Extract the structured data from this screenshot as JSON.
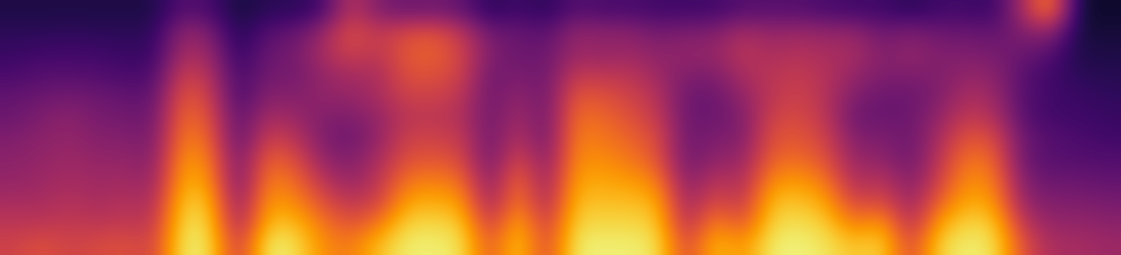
{
  "chart_data": {
    "type": "heatmap",
    "tick_labels": false,
    "color": "inferno",
    "color_range": [
      0,
      1
    ],
    "cells": [
      [
        0.55,
        0.5,
        0.45,
        0.4,
        0.38,
        0.35,
        0.3,
        0.28,
        0.22,
        0.18,
        0.15,
        0.12
      ],
      [
        0.6,
        0.5,
        0.45,
        0.42,
        0.4,
        0.38,
        0.35,
        0.3,
        0.25,
        0.2,
        0.15,
        0.12
      ],
      [
        0.55,
        0.52,
        0.48,
        0.45,
        0.42,
        0.4,
        0.38,
        0.32,
        0.25,
        0.2,
        0.16,
        0.12
      ],
      [
        0.58,
        0.5,
        0.45,
        0.42,
        0.4,
        0.36,
        0.33,
        0.3,
        0.24,
        0.2,
        0.15,
        0.12
      ],
      [
        0.6,
        0.52,
        0.48,
        0.44,
        0.4,
        0.36,
        0.32,
        0.28,
        0.22,
        0.18,
        0.15,
        0.12
      ],
      [
        0.55,
        0.5,
        0.45,
        0.4,
        0.36,
        0.33,
        0.3,
        0.27,
        0.22,
        0.18,
        0.15,
        0.12
      ],
      [
        0.95,
        0.92,
        0.88,
        0.82,
        0.78,
        0.72,
        0.68,
        0.62,
        0.55,
        0.45,
        0.4,
        0.25
      ],
      [
        0.93,
        0.9,
        0.85,
        0.78,
        0.72,
        0.66,
        0.6,
        0.55,
        0.48,
        0.42,
        0.35,
        0.22
      ],
      [
        0.5,
        0.4,
        0.35,
        0.3,
        0.3,
        0.25,
        0.25,
        0.2,
        0.2,
        0.15,
        0.12,
        0.1
      ],
      [
        0.95,
        0.85,
        0.78,
        0.72,
        0.65,
        0.55,
        0.45,
        0.38,
        0.32,
        0.3,
        0.25,
        0.15
      ],
      [
        0.93,
        0.85,
        0.75,
        0.68,
        0.6,
        0.5,
        0.42,
        0.35,
        0.32,
        0.32,
        0.28,
        0.15
      ],
      [
        0.75,
        0.7,
        0.6,
        0.5,
        0.4,
        0.35,
        0.35,
        0.4,
        0.4,
        0.45,
        0.4,
        0.2
      ],
      [
        0.7,
        0.6,
        0.5,
        0.4,
        0.35,
        0.3,
        0.35,
        0.4,
        0.45,
        0.55,
        0.6,
        0.5
      ],
      [
        0.85,
        0.7,
        0.55,
        0.5,
        0.45,
        0.4,
        0.4,
        0.45,
        0.45,
        0.5,
        0.5,
        0.35
      ],
      [
        0.95,
        0.9,
        0.8,
        0.7,
        0.6,
        0.55,
        0.5,
        0.55,
        0.6,
        0.62,
        0.58,
        0.3
      ],
      [
        0.95,
        0.9,
        0.82,
        0.72,
        0.62,
        0.55,
        0.5,
        0.55,
        0.6,
        0.65,
        0.6,
        0.32
      ],
      [
        0.93,
        0.88,
        0.78,
        0.68,
        0.58,
        0.52,
        0.48,
        0.5,
        0.55,
        0.55,
        0.5,
        0.28
      ],
      [
        0.6,
        0.5,
        0.4,
        0.35,
        0.3,
        0.3,
        0.3,
        0.3,
        0.3,
        0.35,
        0.3,
        0.15
      ],
      [
        0.9,
        0.85,
        0.75,
        0.7,
        0.6,
        0.5,
        0.45,
        0.4,
        0.35,
        0.3,
        0.3,
        0.2
      ],
      [
        0.55,
        0.5,
        0.42,
        0.38,
        0.34,
        0.3,
        0.3,
        0.3,
        0.3,
        0.3,
        0.25,
        0.15
      ],
      [
        0.95,
        0.9,
        0.85,
        0.8,
        0.75,
        0.72,
        0.68,
        0.62,
        0.52,
        0.42,
        0.4,
        0.25
      ],
      [
        0.95,
        0.9,
        0.85,
        0.8,
        0.75,
        0.7,
        0.66,
        0.6,
        0.5,
        0.4,
        0.38,
        0.22
      ],
      [
        0.95,
        0.9,
        0.85,
        0.78,
        0.7,
        0.65,
        0.6,
        0.55,
        0.5,
        0.42,
        0.38,
        0.22
      ],
      [
        0.93,
        0.88,
        0.82,
        0.72,
        0.62,
        0.58,
        0.52,
        0.48,
        0.42,
        0.38,
        0.32,
        0.2
      ],
      [
        0.55,
        0.45,
        0.4,
        0.35,
        0.3,
        0.3,
        0.3,
        0.3,
        0.35,
        0.4,
        0.35,
        0.2
      ],
      [
        0.85,
        0.75,
        0.6,
        0.5,
        0.4,
        0.35,
        0.3,
        0.3,
        0.35,
        0.4,
        0.35,
        0.2
      ],
      [
        0.75,
        0.6,
        0.5,
        0.45,
        0.4,
        0.35,
        0.35,
        0.4,
        0.45,
        0.5,
        0.45,
        0.25
      ],
      [
        0.95,
        0.9,
        0.85,
        0.75,
        0.65,
        0.6,
        0.55,
        0.5,
        0.5,
        0.45,
        0.4,
        0.25
      ],
      [
        0.96,
        0.92,
        0.86,
        0.78,
        0.68,
        0.62,
        0.58,
        0.55,
        0.52,
        0.48,
        0.42,
        0.25
      ],
      [
        0.93,
        0.88,
        0.8,
        0.7,
        0.6,
        0.55,
        0.5,
        0.48,
        0.48,
        0.45,
        0.4,
        0.22
      ],
      [
        0.85,
        0.7,
        0.55,
        0.45,
        0.4,
        0.35,
        0.3,
        0.35,
        0.4,
        0.45,
        0.4,
        0.2
      ],
      [
        0.9,
        0.8,
        0.6,
        0.5,
        0.4,
        0.35,
        0.3,
        0.3,
        0.35,
        0.35,
        0.3,
        0.2
      ],
      [
        0.55,
        0.45,
        0.4,
        0.35,
        0.3,
        0.3,
        0.3,
        0.3,
        0.35,
        0.4,
        0.35,
        0.15
      ],
      [
        0.9,
        0.8,
        0.65,
        0.55,
        0.5,
        0.45,
        0.4,
        0.35,
        0.35,
        0.35,
        0.3,
        0.2
      ],
      [
        0.95,
        0.9,
        0.82,
        0.76,
        0.7,
        0.62,
        0.52,
        0.46,
        0.4,
        0.35,
        0.3,
        0.2
      ],
      [
        0.93,
        0.88,
        0.78,
        0.72,
        0.66,
        0.58,
        0.48,
        0.42,
        0.38,
        0.33,
        0.28,
        0.18
      ],
      [
        0.6,
        0.5,
        0.4,
        0.35,
        0.3,
        0.3,
        0.25,
        0.25,
        0.25,
        0.3,
        0.35,
        0.45
      ],
      [
        0.45,
        0.4,
        0.35,
        0.3,
        0.25,
        0.25,
        0.2,
        0.2,
        0.2,
        0.25,
        0.4,
        0.75
      ],
      [
        0.45,
        0.4,
        0.35,
        0.3,
        0.25,
        0.22,
        0.2,
        0.18,
        0.15,
        0.12,
        0.1,
        0.08
      ],
      [
        0.42,
        0.38,
        0.33,
        0.28,
        0.24,
        0.2,
        0.18,
        0.16,
        0.14,
        0.12,
        0.1,
        0.08
      ]
    ]
  }
}
